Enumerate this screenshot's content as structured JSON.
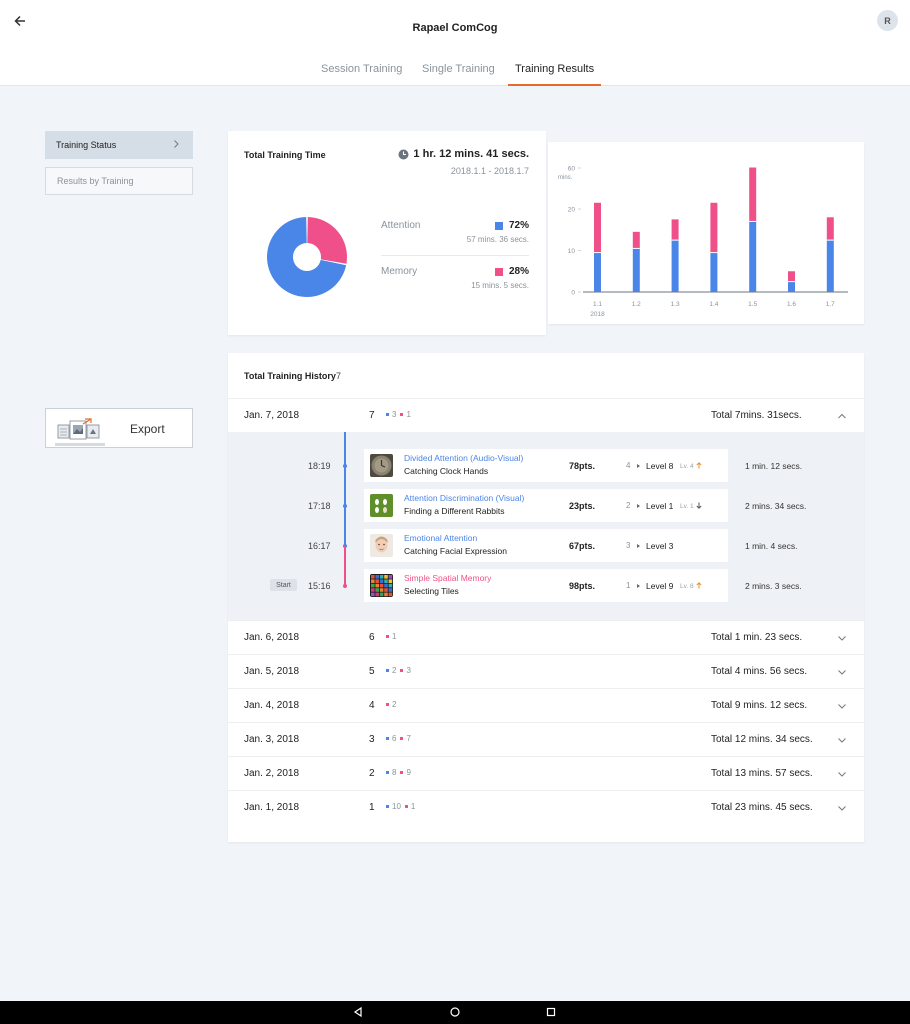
{
  "app": {
    "title": "Rapael ComCog",
    "avatar_initial": "R"
  },
  "tabs": [
    {
      "label": "Session Training",
      "active": false
    },
    {
      "label": "Single Training",
      "active": false
    },
    {
      "label": "Training Results",
      "active": true
    }
  ],
  "sidebar": {
    "items": [
      {
        "label": "Training Status",
        "active": true
      },
      {
        "label": "Results by Training",
        "active": false
      }
    ],
    "export_label": "Export"
  },
  "summary": {
    "title": "Total Training Time",
    "total_time": "1 hr. 12 mins. 41 secs.",
    "date_range": "2018.1.1 - 2018.1.7",
    "categories": [
      {
        "name": "Attention",
        "percent_label": "72%",
        "percent": 72,
        "duration": "57 mins. 36 secs.",
        "color": "#4a86e8"
      },
      {
        "name": "Memory",
        "percent_label": "28%",
        "percent": 28,
        "duration": "15 mins. 5 secs.",
        "color": "#f0508a"
      }
    ]
  },
  "chart_data": {
    "type": "bar",
    "stacked": true,
    "categories": [
      "1.1",
      "1.2",
      "1.3",
      "1.4",
      "1.5",
      "1.6",
      "1.7"
    ],
    "x_sublabel": "2018",
    "ylabel": "mins.",
    "yticks": [
      0,
      10,
      20,
      60
    ],
    "series": [
      {
        "name": "Attention",
        "color": "#4a86e8",
        "values": [
          9.5,
          10.5,
          12.5,
          9.5,
          17,
          2.5,
          12.5
        ]
      },
      {
        "name": "Memory",
        "color": "#f0508a",
        "values": [
          12,
          4,
          5,
          12,
          13,
          2.5,
          5.5
        ]
      }
    ],
    "grid": false
  },
  "history": {
    "title": "Total Training History",
    "count": "7",
    "days": [
      {
        "date": "Jan. 7, 2018",
        "num": "7",
        "attention": "3",
        "memory": "1",
        "total": "Total 7mins. 31secs.",
        "expanded": true
      },
      {
        "date": "Jan. 6, 2018",
        "num": "6",
        "attention": "",
        "memory": "1",
        "total": "Total 1 min. 23 secs.",
        "expanded": false
      },
      {
        "date": "Jan. 5, 2018",
        "num": "5",
        "attention": "2",
        "memory": "3",
        "total": "Total 4 mins. 56 secs.",
        "expanded": false
      },
      {
        "date": "Jan. 4, 2018",
        "num": "4",
        "attention": "",
        "memory": "2",
        "total": "Total 9 mins. 12 secs.",
        "expanded": false
      },
      {
        "date": "Jan. 3, 2018",
        "num": "3",
        "attention": "6",
        "memory": "7",
        "total": "Total 12 mins. 34 secs.",
        "expanded": false
      },
      {
        "date": "Jan. 2, 2018",
        "num": "2",
        "attention": "8",
        "memory": "9",
        "total": "Total 13 mins. 57 secs.",
        "expanded": false
      },
      {
        "date": "Jan. 1, 2018",
        "num": "1",
        "attention": "10",
        "memory": "1",
        "total": "Total 23 mins. 45 secs.",
        "expanded": false
      }
    ],
    "sessions": [
      {
        "time": "18:19",
        "category": "Divided Attention (Audio-Visual)",
        "type": "attention",
        "name": "Catching Clock Hands",
        "points": "78pts.",
        "n": "4",
        "level": "Level 8",
        "lv_prev": "Lv. 4",
        "trend": "up",
        "duration": "1 min. 12 secs.",
        "thumb": "clock"
      },
      {
        "time": "17:18",
        "category": "Attention Discrimination (Visual)",
        "type": "attention",
        "name": "Finding a Different Rabbits",
        "points": "23pts.",
        "n": "2",
        "level": "Level 1",
        "lv_prev": "Lv. 1",
        "trend": "down",
        "duration": "2 mins. 34 secs.",
        "thumb": "rabbits"
      },
      {
        "time": "16:17",
        "category": "Emotional Attention",
        "type": "attention",
        "name": "Catching Facial Expression",
        "points": "67pts.",
        "n": "3",
        "level": "Level 3",
        "lv_prev": "",
        "trend": "none",
        "duration": "1 min. 4 secs.",
        "thumb": "face"
      },
      {
        "time": "15:16",
        "category": "Simple Spatial Memory",
        "type": "memory",
        "name": "Selecting Tiles",
        "points": "98pts.",
        "n": "1",
        "level": "Level 9",
        "lv_prev": "Lv. 8",
        "trend": "up",
        "duration": "2 mins. 3 secs.",
        "thumb": "tiles"
      }
    ],
    "start_label": "Start"
  },
  "colors": {
    "accent": "#e46a2e",
    "attention": "#4a86e8",
    "memory": "#f0508a"
  }
}
